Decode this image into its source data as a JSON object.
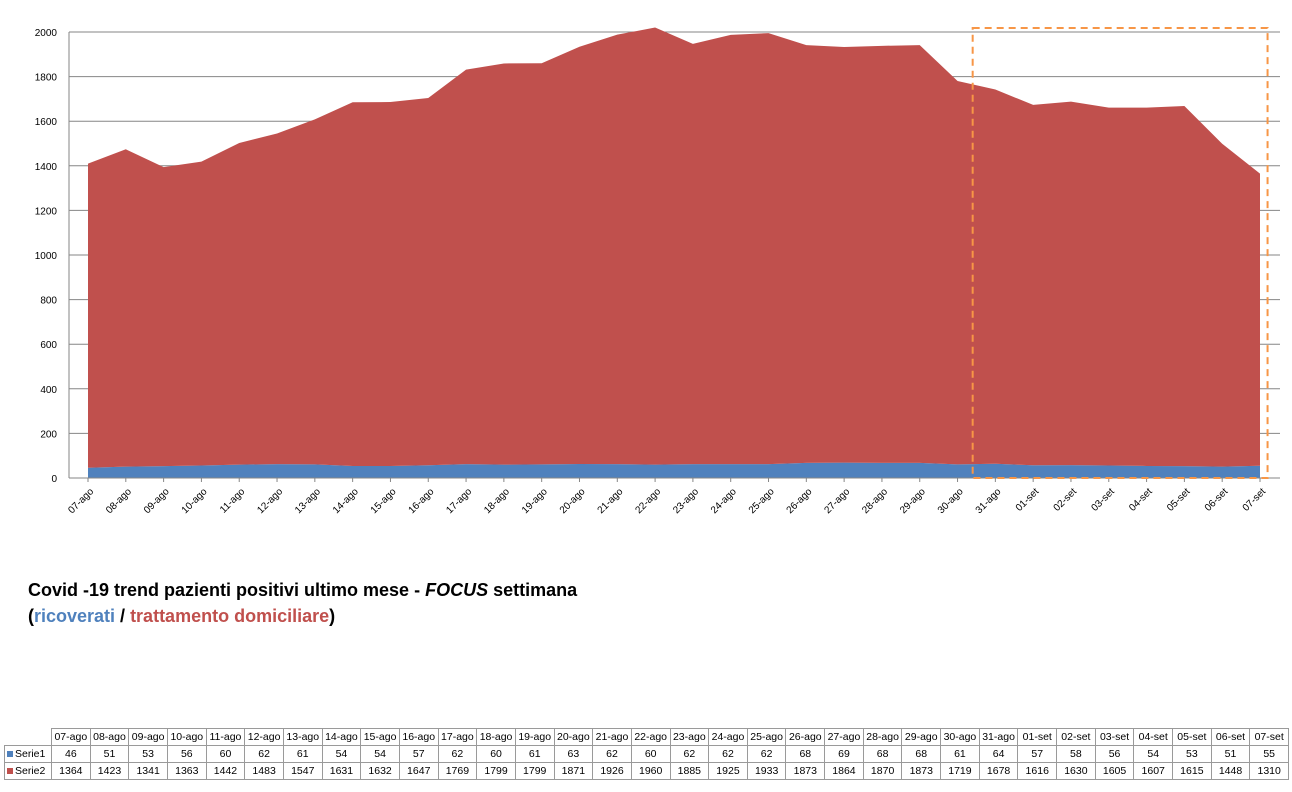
{
  "chart_data": {
    "type": "area",
    "stacked": true,
    "categories": [
      "07-ago",
      "08-ago",
      "09-ago",
      "10-ago",
      "11-ago",
      "12-ago",
      "13-ago",
      "14-ago",
      "15-ago",
      "16-ago",
      "17-ago",
      "18-ago",
      "19-ago",
      "20-ago",
      "21-ago",
      "22-ago",
      "23-ago",
      "24-ago",
      "25-ago",
      "26-ago",
      "27-ago",
      "28-ago",
      "29-ago",
      "30-ago",
      "31-ago",
      "01-set",
      "02-set",
      "03-set",
      "04-set",
      "05-set",
      "06-set",
      "07-set"
    ],
    "series": [
      {
        "name": "Serie1",
        "color": "#4f81bd",
        "values": [
          46,
          51,
          53,
          56,
          60,
          62,
          61,
          54,
          54,
          57,
          62,
          60,
          61,
          63,
          62,
          60,
          62,
          62,
          62,
          68,
          69,
          68,
          68,
          61,
          64,
          57,
          58,
          56,
          54,
          53,
          51,
          55
        ]
      },
      {
        "name": "Serie2",
        "color": "#c0504d",
        "values": [
          1364,
          1423,
          1341,
          1363,
          1442,
          1483,
          1547,
          1631,
          1632,
          1647,
          1769,
          1799,
          1799,
          1871,
          1926,
          1960,
          1885,
          1925,
          1933,
          1873,
          1864,
          1870,
          1873,
          1719,
          1678,
          1616,
          1630,
          1605,
          1607,
          1615,
          1448,
          1310
        ]
      }
    ],
    "ylim": [
      0,
      2000
    ],
    "yticks": [
      0,
      200,
      400,
      600,
      800,
      1000,
      1200,
      1400,
      1600,
      1800,
      2000
    ],
    "grid": true,
    "legend": "data table below chart",
    "highlight": {
      "from": "31-ago",
      "to": "07-set",
      "color": "#f79646",
      "style": "dashed"
    },
    "title": {
      "line1_prefix": "Covid -19 trend pazienti positivi ultimo mese - ",
      "line1_focus": "FOCUS",
      "line1_suffix": " settimana",
      "line2_open": "(",
      "line2_blue": "ricoverati",
      "line2_sep": " / ",
      "line2_red": "trattamento domiciliare",
      "line2_close": ")"
    }
  }
}
